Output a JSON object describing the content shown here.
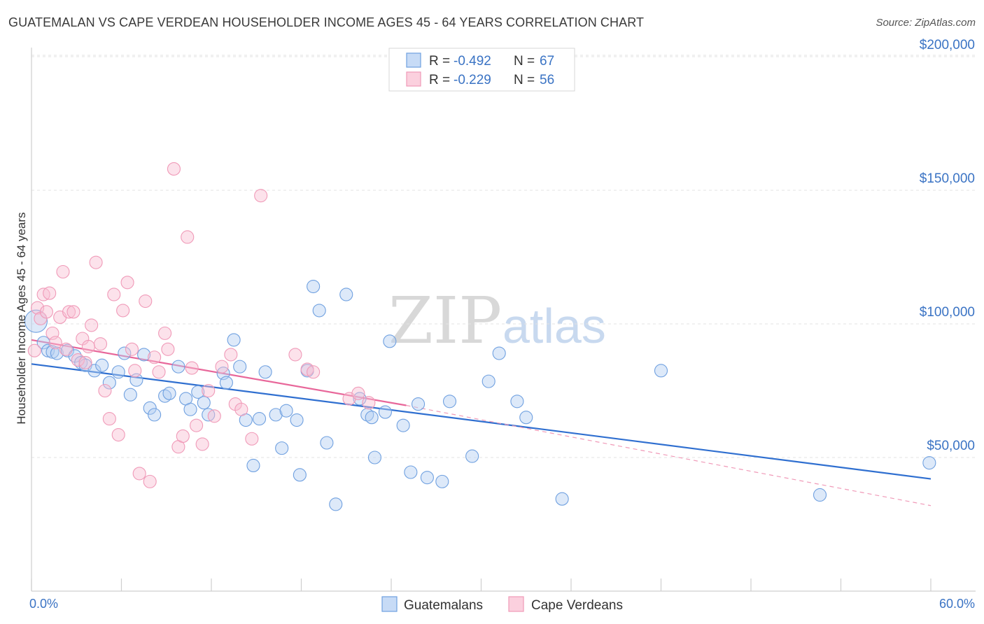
{
  "header": {
    "title": "GUATEMALAN VS CAPE VERDEAN HOUSEHOLDER INCOME AGES 45 - 64 YEARS CORRELATION CHART",
    "source": "Source: ZipAtlas.com"
  },
  "watermark": {
    "zip": "ZIP",
    "atlas": "atlas"
  },
  "legend": {
    "rows": [
      {
        "r_label": "R =",
        "r_value": "-0.492",
        "n_label": "N =",
        "n_value": "67",
        "color": "#6fa0e0"
      },
      {
        "r_label": "R =",
        "r_value": "-0.229",
        "n_label": "N =",
        "n_value": "56",
        "color": "#f09ab8"
      }
    ]
  },
  "bottom_legend": [
    "Guatemalans",
    "Cape Verdeans"
  ],
  "chart_data": {
    "type": "scatter",
    "title": "GUATEMALAN VS CAPE VERDEAN HOUSEHOLDER INCOME AGES 45 - 64 YEARS CORRELATION CHART",
    "xlabel": "",
    "ylabel": "Householder Income Ages 45 - 64 years",
    "xlim": [
      0,
      60
    ],
    "ylim": [
      0,
      210000
    ],
    "x_tick_labels": [
      "0.0%",
      "60.0%"
    ],
    "y_ticks": [
      50000,
      100000,
      150000,
      200000
    ],
    "y_tick_labels": [
      "$50,000",
      "$100,000",
      "$150,000",
      "$200,000"
    ],
    "grid": true,
    "legend_position": "top-center",
    "series": [
      {
        "name": "Guatemalans",
        "color": "#6fa0e0",
        "trend": {
          "x": [
            0,
            60
          ],
          "y": [
            85000,
            42000
          ],
          "style": "solid"
        },
        "points": [
          [
            0.3,
            101000
          ],
          [
            0.8,
            93000
          ],
          [
            1.1,
            90000
          ],
          [
            1.4,
            89500
          ],
          [
            1.7,
            89000
          ],
          [
            2.4,
            90000
          ],
          [
            2.9,
            88000
          ],
          [
            3.3,
            85500
          ],
          [
            3.6,
            84500
          ],
          [
            4.2,
            82500
          ],
          [
            4.7,
            84500
          ],
          [
            5.2,
            78000
          ],
          [
            5.8,
            82000
          ],
          [
            6.2,
            89000
          ],
          [
            6.6,
            73500
          ],
          [
            7.0,
            79000
          ],
          [
            7.5,
            88500
          ],
          [
            7.9,
            68500
          ],
          [
            8.2,
            66000
          ],
          [
            8.9,
            73000
          ],
          [
            9.2,
            74000
          ],
          [
            9.8,
            84000
          ],
          [
            10.3,
            72000
          ],
          [
            10.6,
            68000
          ],
          [
            11.1,
            74500
          ],
          [
            11.5,
            70500
          ],
          [
            11.8,
            66000
          ],
          [
            12.8,
            81500
          ],
          [
            13.0,
            78000
          ],
          [
            13.5,
            94000
          ],
          [
            13.9,
            84000
          ],
          [
            14.3,
            64000
          ],
          [
            15.2,
            64500
          ],
          [
            14.8,
            47000
          ],
          [
            15.6,
            82000
          ],
          [
            16.3,
            66000
          ],
          [
            16.7,
            53500
          ],
          [
            17.0,
            67500
          ],
          [
            17.7,
            64000
          ],
          [
            17.9,
            43500
          ],
          [
            18.4,
            82500
          ],
          [
            18.8,
            114000
          ],
          [
            19.2,
            105000
          ],
          [
            19.7,
            55500
          ],
          [
            20.3,
            32500
          ],
          [
            21.0,
            111000
          ],
          [
            21.9,
            72000
          ],
          [
            22.4,
            66000
          ],
          [
            22.7,
            65000
          ],
          [
            22.9,
            50000
          ],
          [
            23.6,
            67000
          ],
          [
            23.9,
            93500
          ],
          [
            24.8,
            62000
          ],
          [
            25.3,
            44500
          ],
          [
            25.8,
            70000
          ],
          [
            26.4,
            42500
          ],
          [
            27.4,
            41000
          ],
          [
            27.9,
            71000
          ],
          [
            29.4,
            50500
          ],
          [
            30.5,
            78500
          ],
          [
            31.2,
            89000
          ],
          [
            32.4,
            71000
          ],
          [
            33.0,
            65000
          ],
          [
            35.4,
            34500
          ],
          [
            42.0,
            82500
          ],
          [
            52.6,
            36000
          ],
          [
            59.9,
            48000
          ]
        ]
      },
      {
        "name": "Cape Verdeans",
        "color": "#f09ab8",
        "trend": {
          "x": [
            0,
            25
          ],
          "y": [
            94000,
            69500
          ],
          "style": "solid"
        },
        "trend_extended": {
          "x": [
            25,
            60
          ],
          "y": [
            69500,
            32000
          ],
          "style": "dashed"
        },
        "points": [
          [
            0.2,
            90000
          ],
          [
            0.4,
            106000
          ],
          [
            0.6,
            102000
          ],
          [
            0.8,
            111000
          ],
          [
            1.0,
            104500
          ],
          [
            1.2,
            111500
          ],
          [
            1.4,
            96500
          ],
          [
            1.6,
            93000
          ],
          [
            1.9,
            102500
          ],
          [
            2.1,
            119500
          ],
          [
            2.3,
            90500
          ],
          [
            2.5,
            104500
          ],
          [
            2.8,
            104500
          ],
          [
            3.1,
            86500
          ],
          [
            3.4,
            94500
          ],
          [
            3.6,
            85500
          ],
          [
            3.8,
            91500
          ],
          [
            4.0,
            99500
          ],
          [
            4.3,
            123000
          ],
          [
            4.6,
            92500
          ],
          [
            4.9,
            75000
          ],
          [
            5.2,
            64500
          ],
          [
            5.5,
            111000
          ],
          [
            5.8,
            58500
          ],
          [
            6.1,
            105000
          ],
          [
            6.4,
            115500
          ],
          [
            6.7,
            90500
          ],
          [
            6.9,
            82500
          ],
          [
            7.2,
            44000
          ],
          [
            7.6,
            108500
          ],
          [
            7.9,
            41000
          ],
          [
            8.2,
            87500
          ],
          [
            8.5,
            82000
          ],
          [
            8.9,
            96500
          ],
          [
            9.1,
            90500
          ],
          [
            9.5,
            158000
          ],
          [
            9.8,
            54000
          ],
          [
            10.1,
            58000
          ],
          [
            10.4,
            132500
          ],
          [
            10.7,
            83500
          ],
          [
            11.0,
            62000
          ],
          [
            11.4,
            55000
          ],
          [
            11.8,
            75000
          ],
          [
            12.2,
            65500
          ],
          [
            12.7,
            84000
          ],
          [
            13.3,
            88500
          ],
          [
            13.6,
            70000
          ],
          [
            14.0,
            68000
          ],
          [
            14.7,
            57000
          ],
          [
            15.3,
            148000
          ],
          [
            17.6,
            88500
          ],
          [
            18.4,
            83000
          ],
          [
            18.8,
            82000
          ],
          [
            21.2,
            72000
          ],
          [
            21.8,
            74000
          ],
          [
            22.5,
            70500
          ]
        ]
      }
    ]
  }
}
